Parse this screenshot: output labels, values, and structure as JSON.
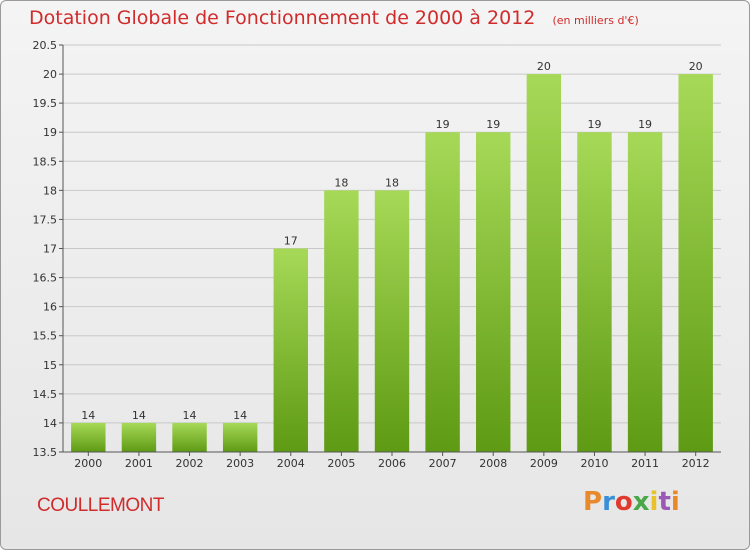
{
  "title": "Dotation Globale de Fonctionnement de 2000 à 2012",
  "subtitle": "(en milliers d'€)",
  "commune": "COULLEMONT",
  "logo": {
    "text": "Proxiti",
    "colors": [
      "#e8892b",
      "#3a8fd6",
      "#e03a2f",
      "#4aa84a",
      "#e8c12b",
      "#9b59b6",
      "#e8892b"
    ]
  },
  "colors": {
    "title": "#d12b2b",
    "bar_top": "#a6d957",
    "bar_bottom": "#5e9a14",
    "grid": "#c8c8c8"
  },
  "chart_data": {
    "type": "bar",
    "categories": [
      "2000",
      "2001",
      "2002",
      "2003",
      "2004",
      "2005",
      "2006",
      "2007",
      "2008",
      "2009",
      "2010",
      "2011",
      "2012"
    ],
    "values": [
      14,
      14,
      14,
      14,
      17,
      18,
      18,
      19,
      19,
      20,
      19,
      19,
      20
    ],
    "labels": [
      "14",
      "14",
      "14",
      "14",
      "17",
      "18",
      "18",
      "19",
      "19",
      "20",
      "19",
      "19",
      "20"
    ],
    "ylim": [
      13.5,
      20.5
    ],
    "yticks": [
      "13.5",
      "14",
      "14.5",
      "15",
      "15.5",
      "16",
      "16.5",
      "17",
      "17.5",
      "18",
      "18.5",
      "19",
      "19.5",
      "20",
      "20.5"
    ],
    "grid": true,
    "title": "Dotation Globale de Fonctionnement de 2000 à 2012",
    "xlabel": "",
    "ylabel": ""
  }
}
